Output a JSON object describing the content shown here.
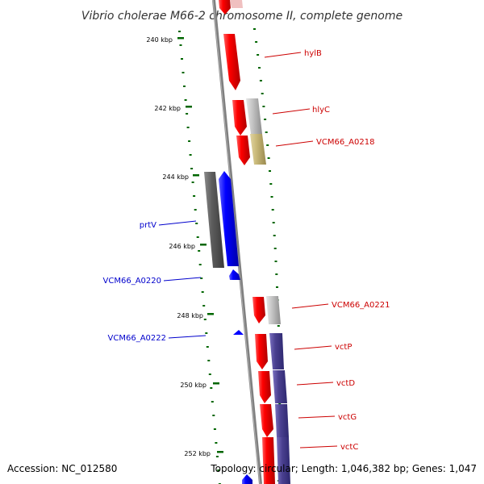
{
  "title": "Vibrio cholerae M66-2 chromosome II, complete genome",
  "footer": {
    "accession": "Accession: NC_012580",
    "summary": "Topology: circular; Length: 1,046,382 bp; Genes: 1,047"
  },
  "ticks": [
    "240 kbp",
    "242 kbp",
    "244 kbp",
    "246 kbp",
    "248 kbp",
    "250 kbp",
    "252 kbp"
  ],
  "genes": [
    {
      "name": "hylB",
      "strand": "forward"
    },
    {
      "name": "hlyC",
      "strand": "forward"
    },
    {
      "name": "VCM66_A0218",
      "strand": "forward"
    },
    {
      "name": "prtV",
      "strand": "reverse"
    },
    {
      "name": "VCM66_A0220",
      "strand": "reverse"
    },
    {
      "name": "VCM66_A0221",
      "strand": "forward"
    },
    {
      "name": "VCM66_A0222",
      "strand": "reverse"
    },
    {
      "name": "vctP",
      "strand": "forward"
    },
    {
      "name": "vctD",
      "strand": "forward"
    },
    {
      "name": "vctG",
      "strand": "forward"
    },
    {
      "name": "vctC",
      "strand": "forward"
    }
  ],
  "colors": {
    "forward_cds": "#ff0000",
    "reverse_cds": "#0000ff",
    "forward_label": "#cc0000",
    "reverse_label": "#0000cc",
    "ruler_ticks": "#006600",
    "backbone": "#808080",
    "cog_gray": "#b8b8b8",
    "cog_dark": "#555555",
    "cog_tan": "#c8b878",
    "cog_purple": "#4a4090"
  }
}
